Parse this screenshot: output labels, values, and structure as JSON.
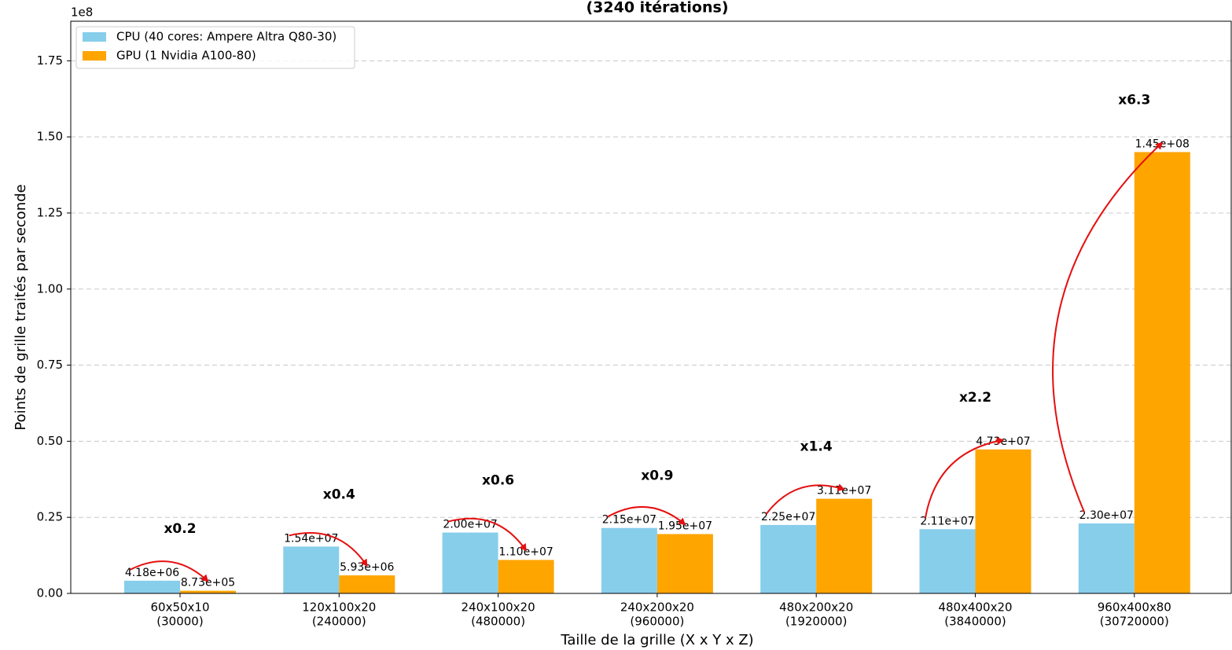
{
  "chart_data": {
    "type": "bar",
    "title": "(3240 itérations)",
    "xlabel": "Taille de la grille (X x Y x Z)",
    "ylabel": "Points de grille traités par seconde",
    "y_offset_label": "1e8",
    "categories": [
      [
        "60x50x10",
        "(30000)"
      ],
      [
        "120x100x20",
        "(240000)"
      ],
      [
        "240x100x20",
        "(480000)"
      ],
      [
        "240x200x20",
        "(960000)"
      ],
      [
        "480x200x20",
        "(1920000)"
      ],
      [
        "480x400x20",
        "(3840000)"
      ],
      [
        "960x400x80",
        "(30720000)"
      ]
    ],
    "series": [
      {
        "name": "CPU (40 cores: Ampere Altra Q80-30)",
        "color": "#87ceeb",
        "values": [
          4180000,
          15400000,
          20000000,
          21500000,
          22500000,
          21100000,
          23000000
        ],
        "value_labels": [
          "4.18e+06",
          "1.54e+07",
          "2.00e+07",
          "2.15e+07",
          "2.25e+07",
          "2.11e+07",
          "2.30e+07"
        ]
      },
      {
        "name": "GPU (1 Nvidia A100-80)",
        "color": "#ffa500",
        "values": [
          873000,
          5930000,
          11000000,
          19500000,
          31100000,
          47300000,
          145000000
        ],
        "value_labels": [
          "8.73e+05",
          "5.93e+06",
          "1.10e+07",
          "1.95e+07",
          "3.11e+07",
          "4.73e+07",
          "1.45e+08"
        ]
      }
    ],
    "annotations": [
      "x0.2",
      "x0.4",
      "x0.6",
      "x0.9",
      "x1.4",
      "x2.2",
      "x6.3"
    ],
    "annotation_color": "#e51010",
    "ylim": [
      0,
      188000000
    ],
    "yticks": [
      {
        "value": 0,
        "label": "0.00"
      },
      {
        "value": 25000000,
        "label": "0.25"
      },
      {
        "value": 50000000,
        "label": "0.50"
      },
      {
        "value": 75000000,
        "label": "0.75"
      },
      {
        "value": 100000000,
        "label": "1.00"
      },
      {
        "value": 125000000,
        "label": "1.25"
      },
      {
        "value": 150000000,
        "label": "1.50"
      },
      {
        "value": 175000000,
        "label": "1.75"
      }
    ],
    "grid": true,
    "legend": "upper left"
  }
}
